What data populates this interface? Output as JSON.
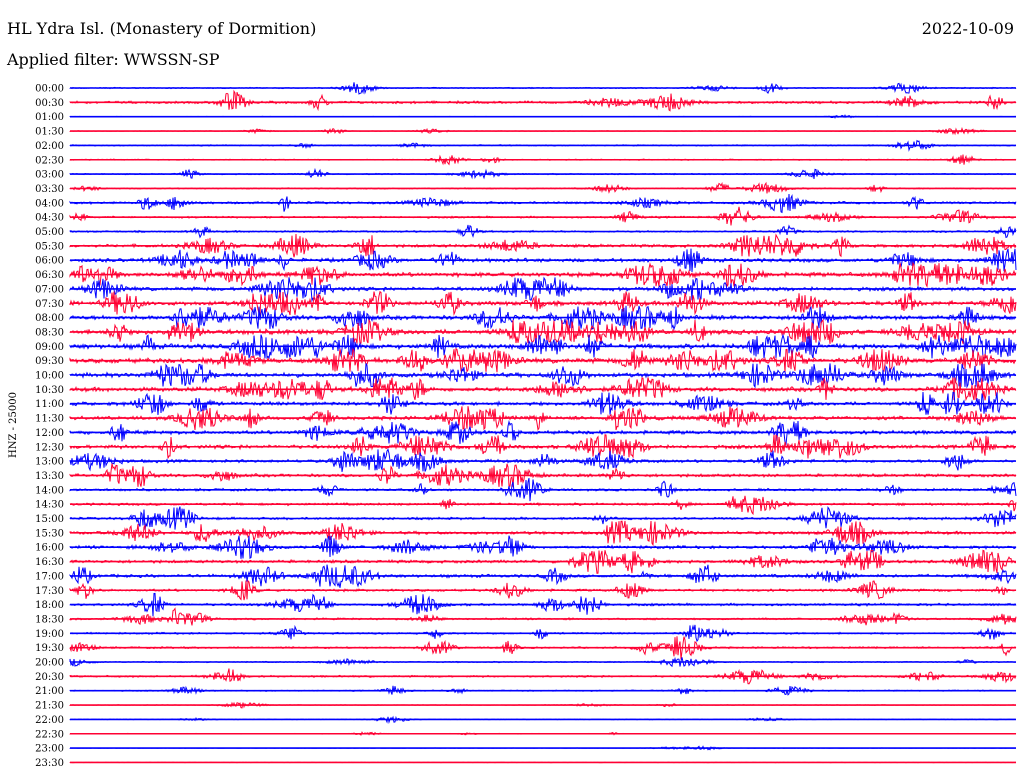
{
  "header": {
    "station": "HL Ydra Isl. (Monastery of Dormition)",
    "date": "2022-10-09",
    "filter": "Applied filter: WWSSN-SP"
  },
  "chart_data": {
    "type": "line",
    "ylabel": "HNZ - 25000",
    "row_labels": [
      "00:00",
      "00:30",
      "01:00",
      "01:30",
      "02:00",
      "02:30",
      "03:00",
      "03:30",
      "04:00",
      "04:30",
      "05:00",
      "05:30",
      "06:00",
      "06:30",
      "07:00",
      "07:30",
      "08:00",
      "08:30",
      "09:00",
      "09:30",
      "10:00",
      "10:30",
      "11:00",
      "11:30",
      "12:00",
      "12:30",
      "13:00",
      "13:30",
      "14:00",
      "14:30",
      "15:00",
      "15:30",
      "16:00",
      "16:30",
      "17:00",
      "17:30",
      "18:00",
      "18:30",
      "19:00",
      "19:30",
      "20:00",
      "20:30",
      "21:00",
      "21:30",
      "22:00",
      "22:30",
      "23:00",
      "23:30"
    ],
    "trace_amplitude": [
      2,
      4,
      1,
      1,
      2,
      2,
      2,
      2,
      4,
      3,
      3,
      5,
      6,
      7,
      6,
      7,
      7,
      8,
      8,
      8,
      7,
      7,
      6,
      6,
      6,
      6,
      5,
      5,
      4,
      4,
      4,
      5,
      5,
      5,
      5,
      4,
      4,
      3,
      3,
      3,
      2,
      3,
      2,
      1,
      1,
      1,
      0.5,
      0.5
    ],
    "series_colors": [
      "#0000ff",
      "#ff0033"
    ]
  }
}
